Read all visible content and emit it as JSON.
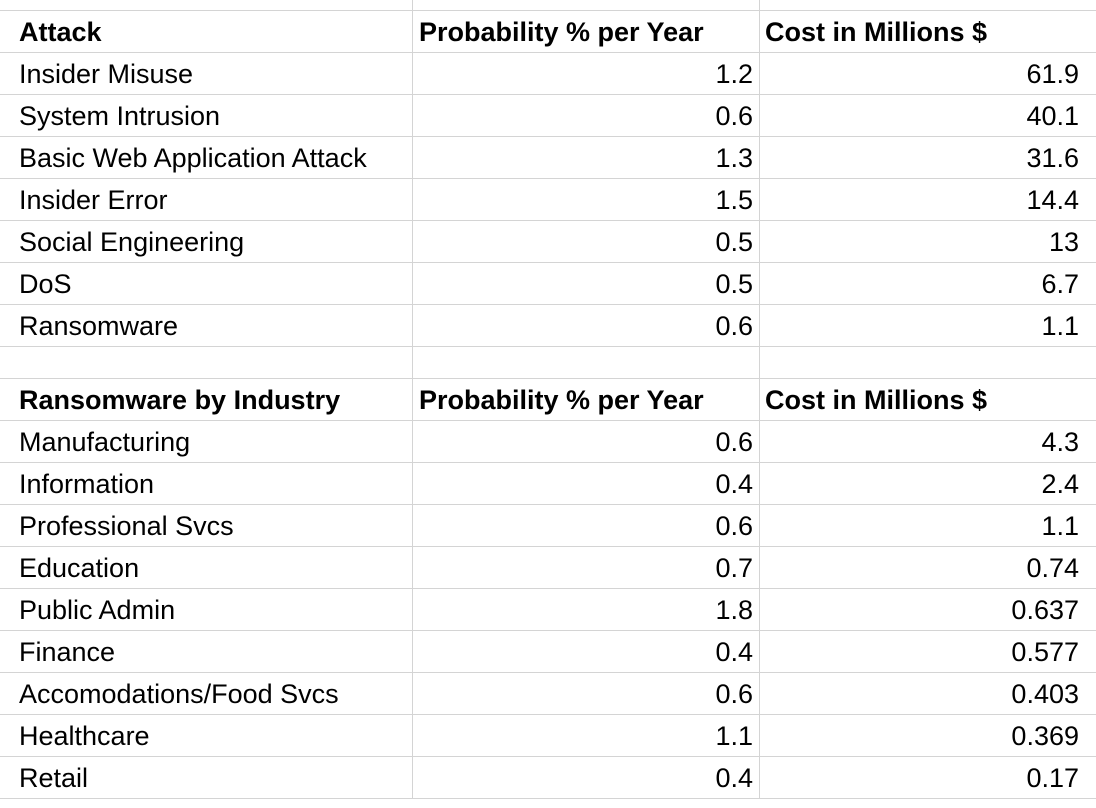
{
  "table1": {
    "headers": [
      "Attack",
      "Probability % per Year",
      "Cost in Millions $"
    ],
    "rows": [
      [
        "Insider Misuse",
        "1.2",
        "61.9"
      ],
      [
        "System Intrusion",
        "0.6",
        "40.1"
      ],
      [
        "Basic Web Application Attack",
        "1.3",
        "31.6"
      ],
      [
        "Insider Error",
        "1.5",
        "14.4"
      ],
      [
        "Social Engineering",
        "0.5",
        "13"
      ],
      [
        "DoS",
        "0.5",
        "6.7"
      ],
      [
        "Ransomware",
        "0.6",
        "1.1"
      ]
    ]
  },
  "table2": {
    "headers": [
      "Ransomware by Industry",
      "Probability % per Year",
      "Cost in Millions $"
    ],
    "rows": [
      [
        "Manufacturing",
        "0.6",
        "4.3"
      ],
      [
        "Information",
        "0.4",
        "2.4"
      ],
      [
        "Professional Svcs",
        "0.6",
        "1.1"
      ],
      [
        "Education",
        "0.7",
        "0.74"
      ],
      [
        "Public Admin",
        "1.8",
        "0.637"
      ],
      [
        "Finance",
        "0.4",
        "0.577"
      ],
      [
        "Accomodations/Food Svcs",
        "0.6",
        "0.403"
      ],
      [
        "Healthcare",
        "1.1",
        "0.369"
      ],
      [
        "Retail",
        "0.4",
        "0.17"
      ]
    ]
  }
}
